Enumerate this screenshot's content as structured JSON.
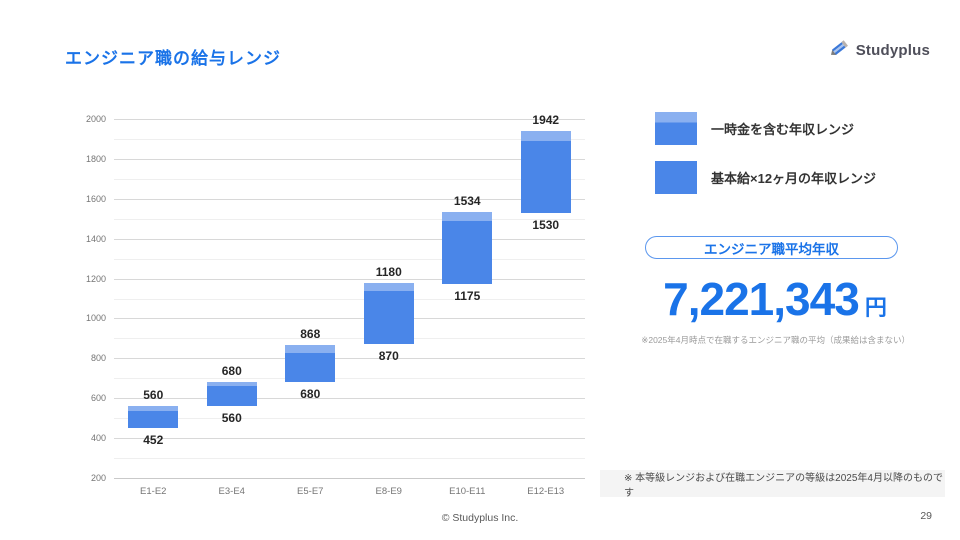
{
  "slide_title": "エンジニア職の給与レンジ",
  "logo": {
    "text": "Studyplus",
    "icon": "pencil-icon"
  },
  "chart_data": {
    "type": "bar",
    "variant": "floating-range-bar",
    "categories": [
      "E1-E2",
      "E3-E4",
      "E5-E7",
      "E8-E9",
      "E10-E11",
      "E12-E13"
    ],
    "range_min": [
      452,
      560,
      680,
      870,
      1175,
      1530
    ],
    "range_max": [
      560,
      680,
      868,
      1180,
      1534,
      1942
    ],
    "base_max_estimate": [
      536,
      660,
      825,
      1140,
      1490,
      1890
    ],
    "ylim": [
      200,
      2000
    ],
    "ytick_labeled_step": 200,
    "ytick_minor_step": 100,
    "grid": true,
    "legend": [
      "一時金を含む年収レンジ",
      "基本給×12ヶ月の年収レンジ"
    ],
    "bar_color": "#4a86e8",
    "bar_top_band_color": "#8ab0f0"
  },
  "legend": {
    "items": [
      {
        "label": "一時金を含む年収レンジ",
        "swatch": "split"
      },
      {
        "label": "基本給×12ヶ月の年収レンジ",
        "swatch": "solid"
      }
    ]
  },
  "average": {
    "badge": "エンジニア職平均年収",
    "value": "7,221,343",
    "unit": "円",
    "note": "※2025年4月時点で在職するエンジニア職の平均（成果給は含まない）"
  },
  "footnote": {
    "text": "※  本等級レンジおよび在職エンジニアの等級は2025年4月以降のものです"
  },
  "footer": {
    "copyright": "© Studyplus Inc.",
    "page": "29"
  },
  "colors": {
    "accent_blue": "#1a73e8",
    "bar_blue": "#4a86e8",
    "bar_light_blue": "#8ab0f0"
  }
}
